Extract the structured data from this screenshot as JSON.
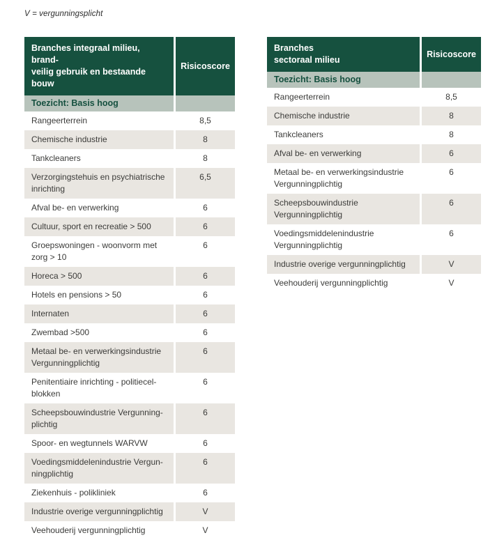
{
  "note": "V = vergunningsplicht",
  "colors": {
    "header_bg": "#16513f",
    "header_text": "#ffffff",
    "subheader_bg": "#b7c3bb",
    "subheader_text": "#15503f",
    "row_alt_bg": "#e9e6e1",
    "body_text": "#3b3b39"
  },
  "tables": [
    {
      "title": "Branches integraal milieu, brand-\nveilig gebruik en bestaande bouw",
      "score_header": "Risicoscore",
      "subheader": "Toezicht: Basis hoog",
      "rows": [
        {
          "label": "Rangeerterrein",
          "score": "8,5"
        },
        {
          "label": "Chemische industrie",
          "score": "8"
        },
        {
          "label": "Tankcleaners",
          "score": "8"
        },
        {
          "label": "Verzorgingstehuis en psychiatrische\ninrichting",
          "score": "6,5"
        },
        {
          "label": "Afval be- en verwerking",
          "score": "6"
        },
        {
          "label": "Cultuur, sport en recreatie > 500",
          "score": "6"
        },
        {
          "label": "Groepswoningen - woonvorm met\nzorg > 10",
          "score": "6"
        },
        {
          "label": "Horeca > 500",
          "score": "6"
        },
        {
          "label": "Hotels en pensions > 50",
          "score": "6"
        },
        {
          "label": "Internaten",
          "score": "6"
        },
        {
          "label": "Zwembad >500",
          "score": "6"
        },
        {
          "label": "Metaal be- en verwerkingsindustrie\nVergunningplichtig",
          "score": "6"
        },
        {
          "label": "Penitentiaire inrichting - politiecel-\nblokken",
          "score": "6"
        },
        {
          "label": "Scheepsbouwindustrie Vergunning-\nplichtig",
          "score": "6"
        },
        {
          "label": "Spoor- en wegtunnels WARVW",
          "score": "6"
        },
        {
          "label": "Voedingsmiddelenindustrie Vergun-\nningplichtig",
          "score": "6"
        },
        {
          "label": "Ziekenhuis - polikliniek",
          "score": "6"
        },
        {
          "label": "Industrie overige vergunningplichtig",
          "score": "V"
        },
        {
          "label": "Veehouderij vergunningplichtig",
          "score": "V"
        }
      ]
    },
    {
      "title": "Branches\nsectoraal milieu",
      "score_header": "Risicoscore",
      "subheader": "Toezicht: Basis hoog",
      "rows": [
        {
          "label": "Rangeerterrein",
          "score": "8,5"
        },
        {
          "label": "Chemische industrie",
          "score": "8"
        },
        {
          "label": "Tankcleaners",
          "score": "8"
        },
        {
          "label": "Afval be- en verwerking",
          "score": "6"
        },
        {
          "label": "Metaal be- en verwerkingsindustrie\nVergunningplichtig",
          "score": "6"
        },
        {
          "label": "Scheepsbouwindustrie\nVergunningplichtig",
          "score": "6"
        },
        {
          "label": "Voedingsmiddelenindustrie\nVergunningplichtig",
          "score": "6"
        },
        {
          "label": "Industrie overige vergunningplichtig",
          "score": "V"
        },
        {
          "label": "Veehouderij vergunningplichtig",
          "score": "V"
        }
      ]
    }
  ]
}
